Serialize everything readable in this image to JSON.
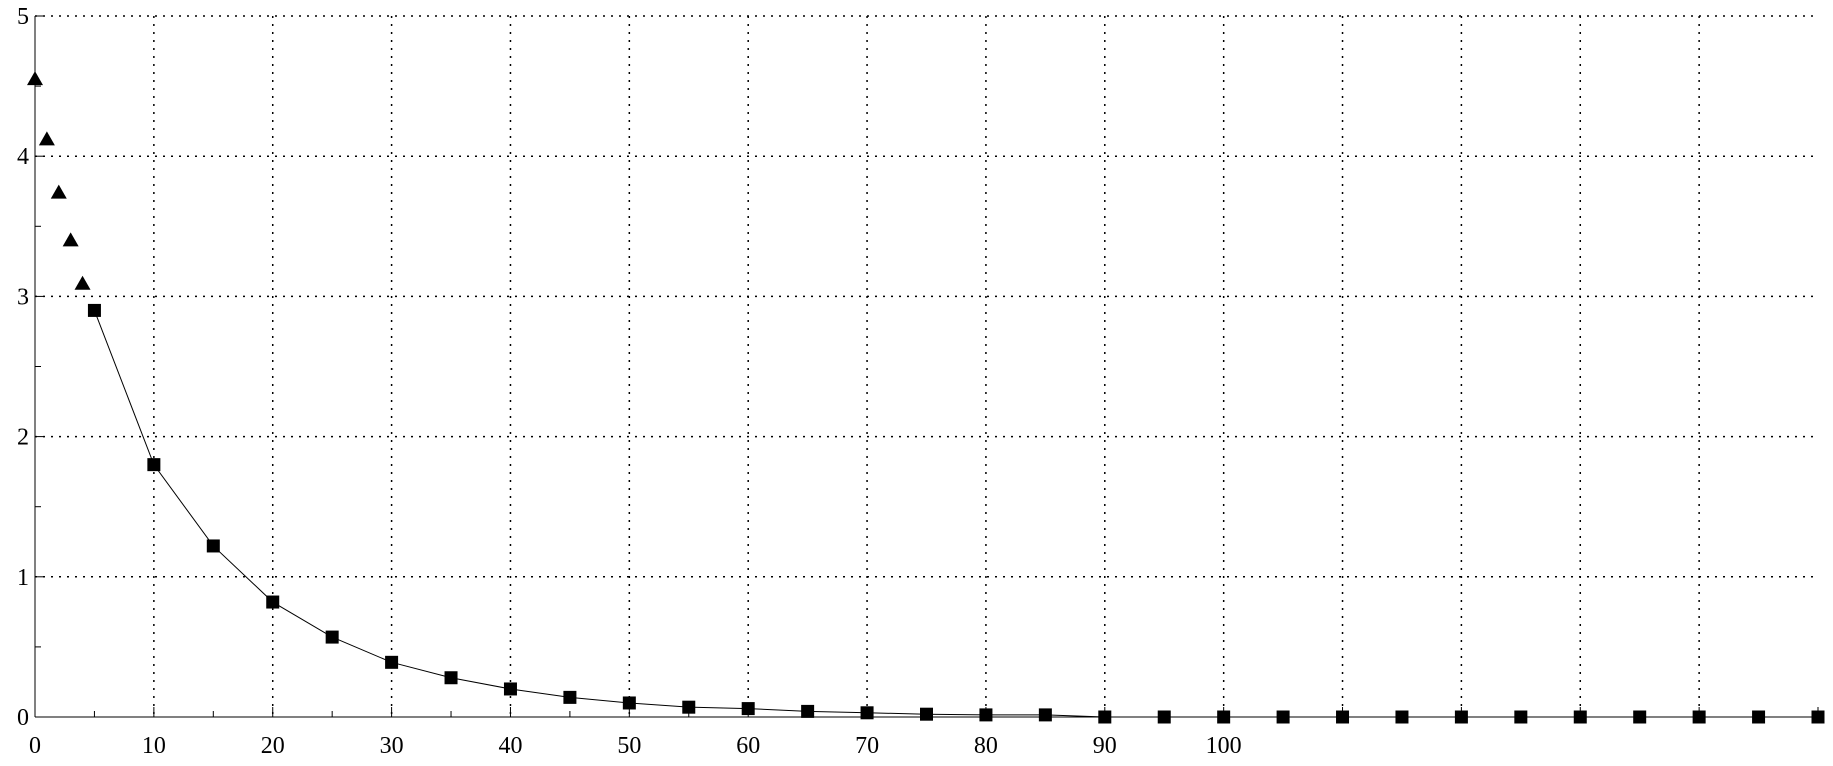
{
  "chart_data": {
    "type": "line",
    "title": "",
    "xlabel": "",
    "ylabel": "",
    "xlim": [
      0,
      150
    ],
    "ylim": [
      0,
      5
    ],
    "grid": true,
    "x_tick_labels": [
      "0",
      "10",
      "20",
      "30",
      "40",
      "50",
      "60",
      "70",
      "80",
      "90",
      "100"
    ],
    "y_tick_labels": [
      "0",
      "1",
      "2",
      "3",
      "4",
      "5"
    ],
    "series": [
      {
        "marker": "triangle",
        "connected": false,
        "x": [
          0,
          1,
          2,
          3,
          4
        ],
        "y": [
          4.55,
          4.12,
          3.74,
          3.4,
          3.09
        ]
      },
      {
        "marker": "square",
        "connected": true,
        "x": [
          5,
          10,
          15,
          20,
          25,
          30,
          35,
          40,
          45,
          50,
          55,
          60,
          65,
          70,
          75,
          80,
          85,
          90,
          95,
          100,
          105,
          110,
          115,
          120,
          125,
          130,
          135,
          140,
          145,
          150
        ],
        "y": [
          2.9,
          1.8,
          1.22,
          0.82,
          0.57,
          0.39,
          0.28,
          0.2,
          0.14,
          0.1,
          0.07,
          0.06,
          0.04,
          0.03,
          0.02,
          0.015,
          0.015,
          0.0,
          0.0,
          0.0,
          0.0,
          0.0,
          0.0,
          0.0,
          0.0,
          0.0,
          0.0,
          0.0,
          0.0,
          0.0
        ]
      }
    ]
  }
}
